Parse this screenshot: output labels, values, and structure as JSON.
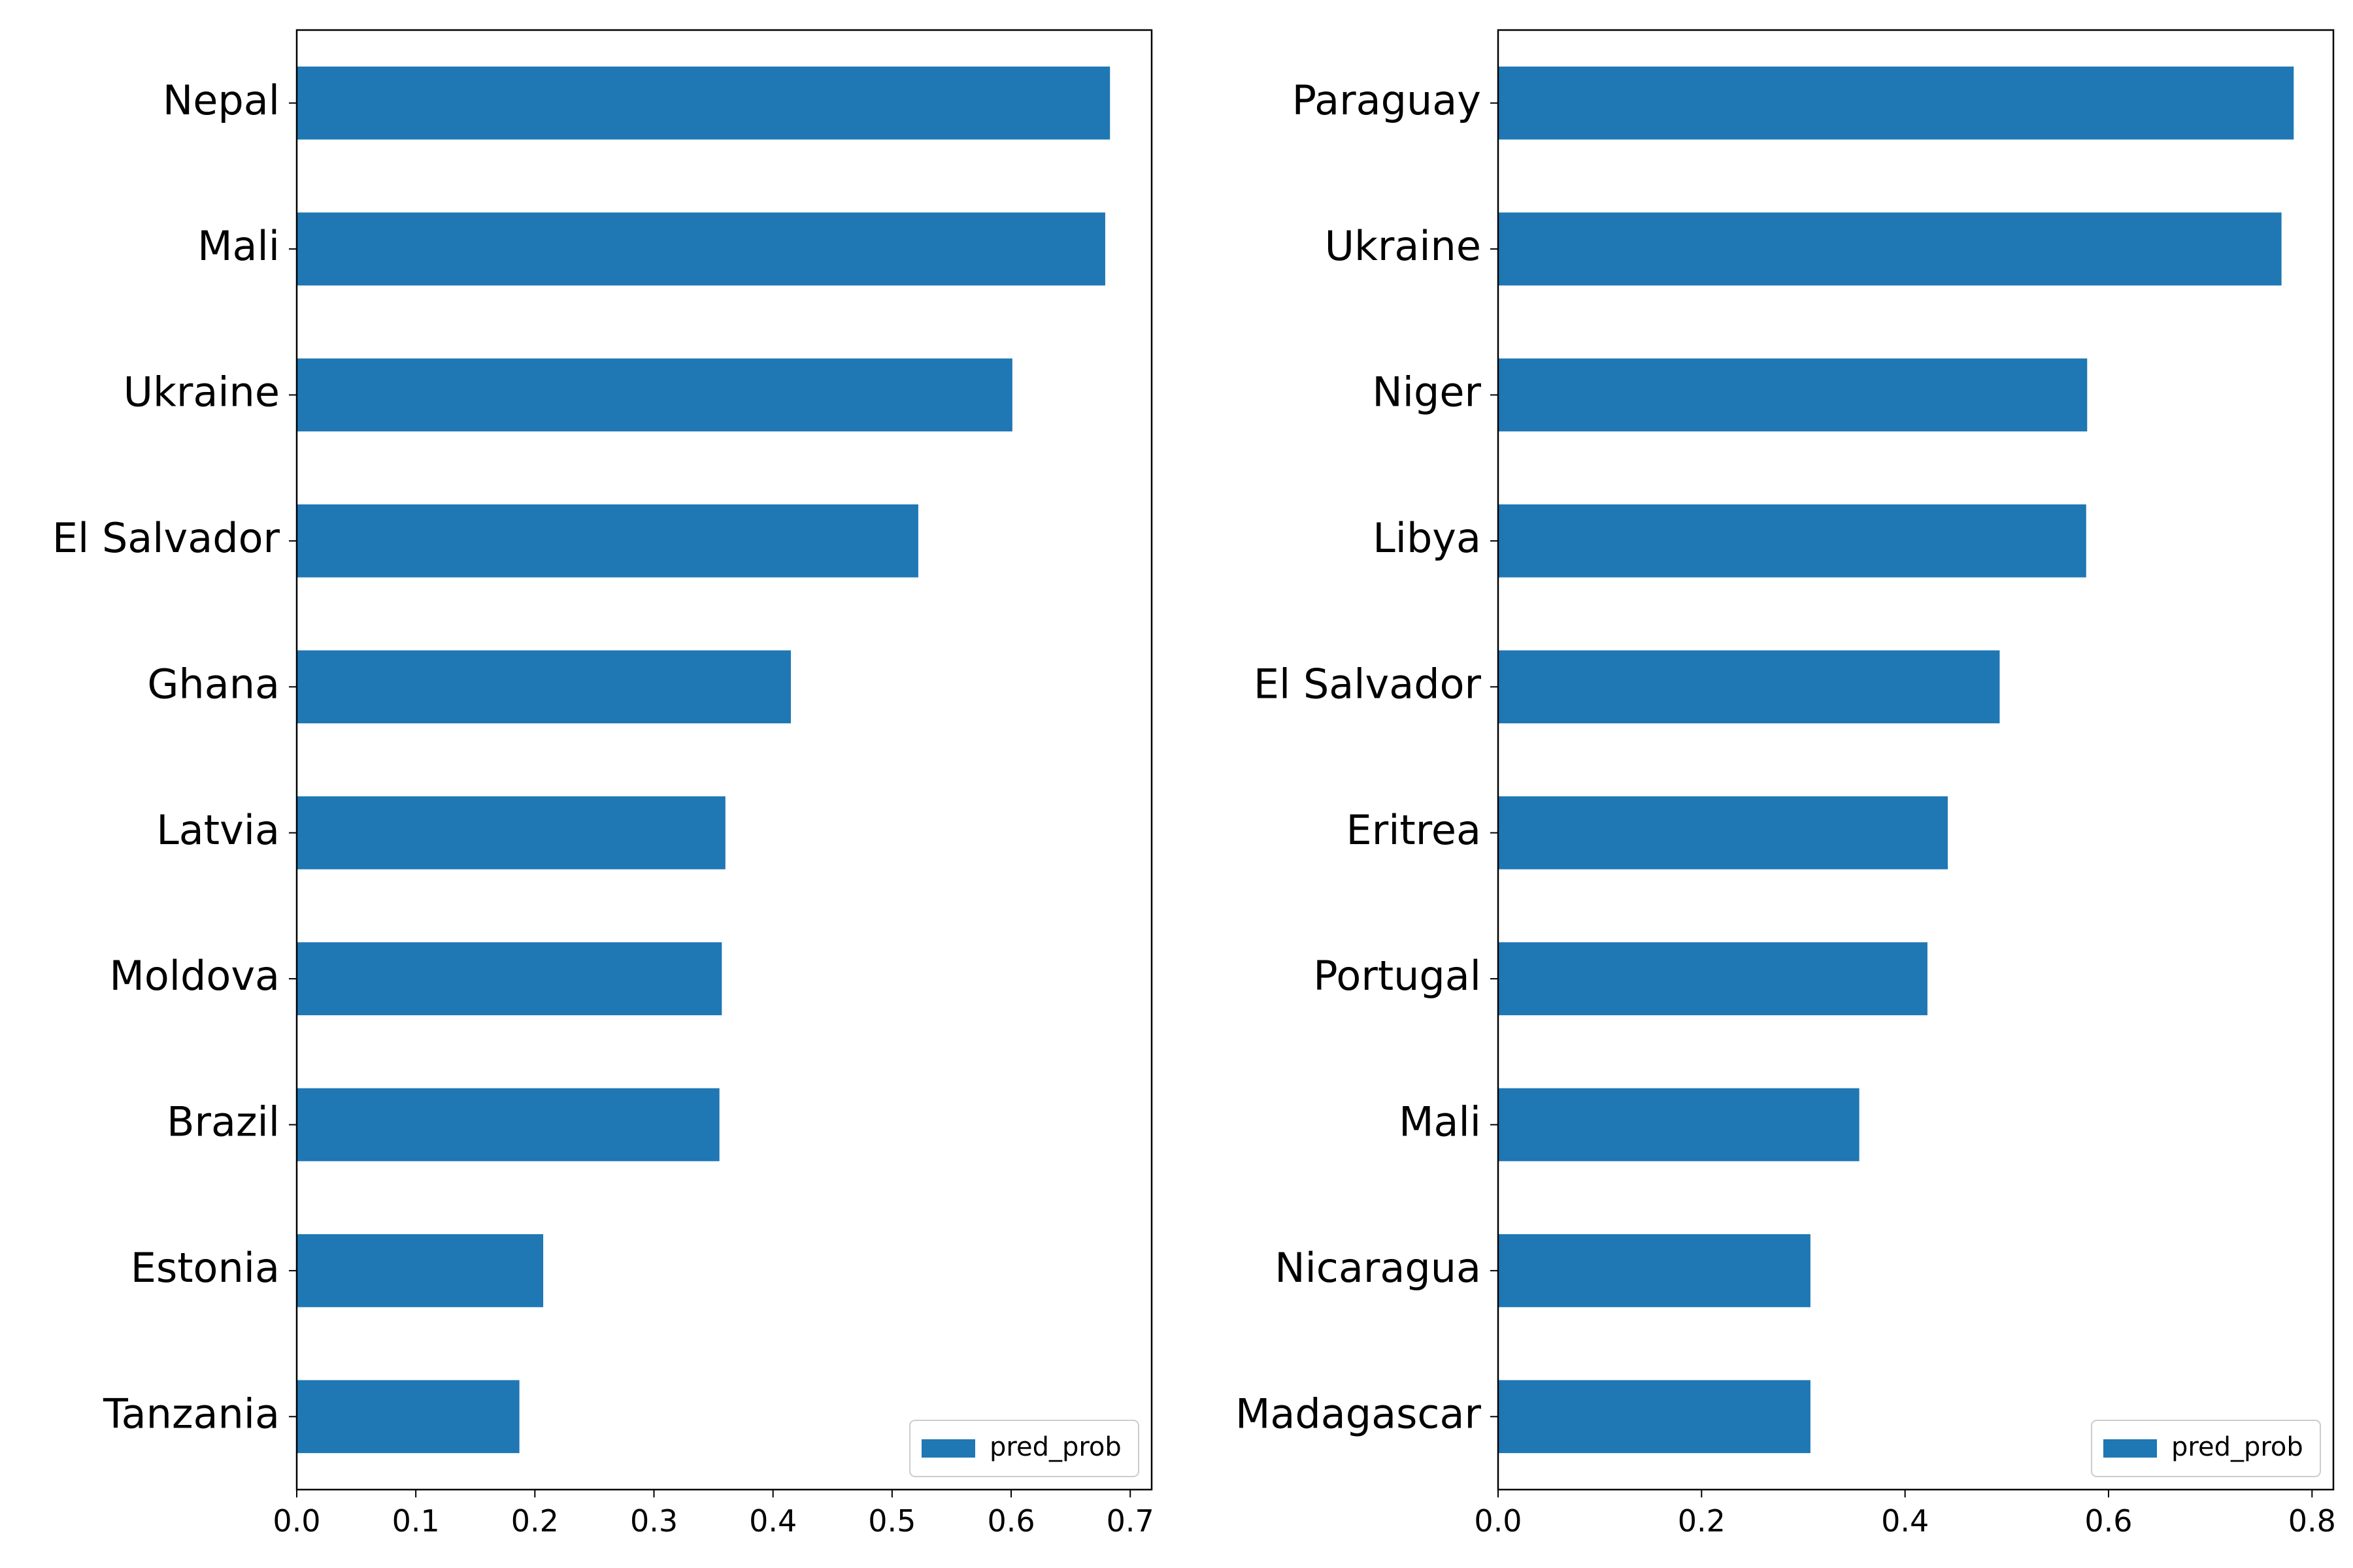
{
  "chart_data": [
    {
      "type": "bar",
      "orientation": "horizontal",
      "categories": [
        "Nepal",
        "Mali",
        "Ukraine",
        "El Salvador",
        "Ghana",
        "Latvia",
        "Moldova",
        "Brazil",
        "Estonia",
        "Tanzania"
      ],
      "series": [
        {
          "name": "pred_prob",
          "values": [
            0.683,
            0.679,
            0.601,
            0.522,
            0.415,
            0.36,
            0.357,
            0.355,
            0.207,
            0.187
          ]
        }
      ],
      "xticks": [
        "0.0",
        "0.1",
        "0.2",
        "0.3",
        "0.4",
        "0.5",
        "0.6",
        "0.7"
      ],
      "xtick_values": [
        0,
        0.1,
        0.2,
        0.3,
        0.4,
        0.5,
        0.6,
        0.7
      ],
      "xlim": [
        0,
        0.718
      ],
      "title": "",
      "xlabel": "",
      "ylabel": "",
      "grid": false,
      "legend_position": "lower-right",
      "color": "#1f77b4"
    },
    {
      "type": "bar",
      "orientation": "horizontal",
      "categories": [
        "Paraguay",
        "Ukraine",
        "Niger",
        "Libya",
        "El Salvador",
        "Eritrea",
        "Portugal",
        "Mali",
        "Nicaragua",
        "Madagascar"
      ],
      "series": [
        {
          "name": "pred_prob",
          "values": [
            0.782,
            0.77,
            0.579,
            0.578,
            0.493,
            0.442,
            0.422,
            0.355,
            0.307,
            0.307
          ]
        }
      ],
      "xticks": [
        "0.0",
        "0.2",
        "0.4",
        "0.6",
        "0.8"
      ],
      "xtick_values": [
        0,
        0.2,
        0.4,
        0.6,
        0.8
      ],
      "xlim": [
        0,
        0.821
      ],
      "title": "",
      "xlabel": "",
      "ylabel": "",
      "grid": false,
      "legend_position": "lower-right",
      "color": "#1f77b4"
    }
  ]
}
